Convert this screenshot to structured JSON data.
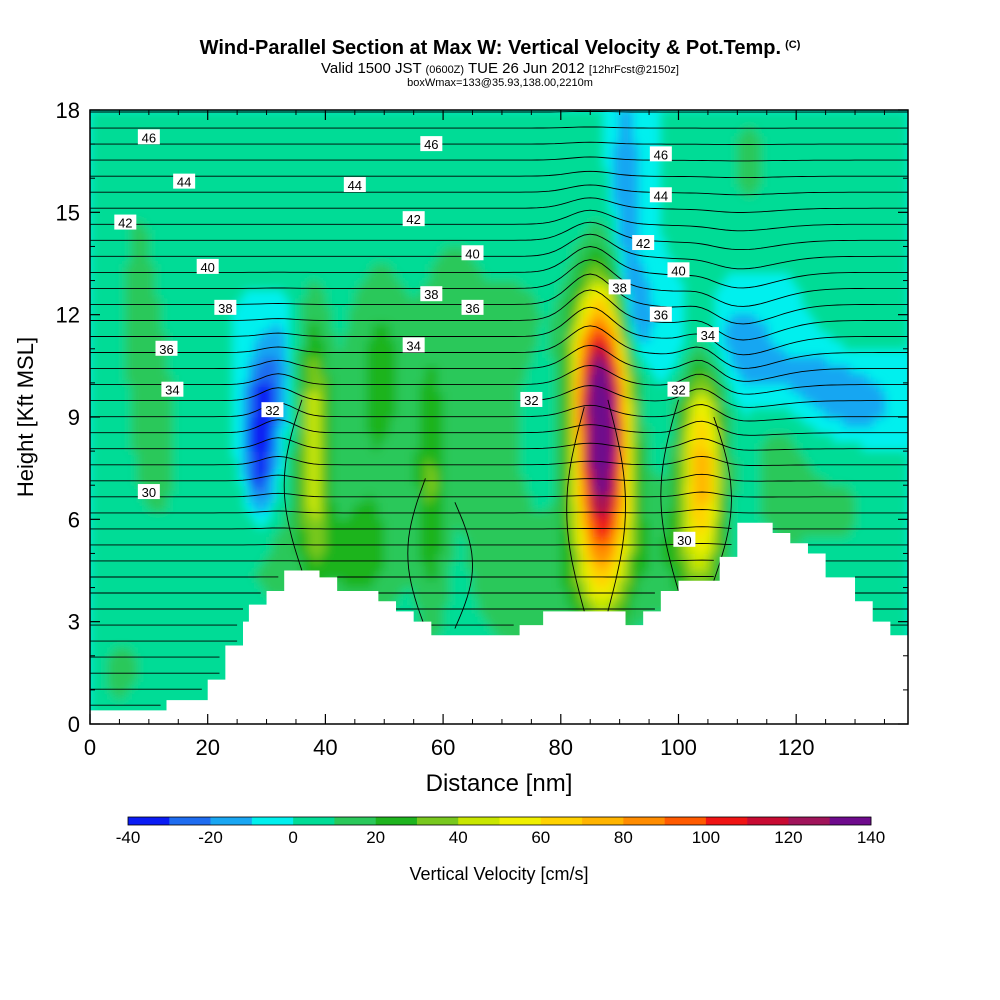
{
  "header": {
    "title": "Wind-Parallel Section at Max W: Vertical Velocity & Pot.Temp.",
    "title_tag": "(C)",
    "valid_prefix": "Valid 1500 JST",
    "valid_utc": "(0600Z)",
    "valid_date": "TUE 26 Jun 2012",
    "forecast": "[12hrFcst@2150z]",
    "box_info": "boxWmax=133@35.93,138.00,2210m"
  },
  "chart_data": {
    "type": "heatmap",
    "xlabel": "Distance [nm]",
    "ylabel": "Height [Kft MSL]",
    "xlim": [
      0,
      139
    ],
    "ylim": [
      0,
      18
    ],
    "x_ticks": [
      0,
      20,
      40,
      60,
      80,
      100,
      120
    ],
    "y_ticks": [
      0,
      3,
      6,
      9,
      12,
      15,
      18
    ],
    "grid": false,
    "colorbar": {
      "label": "Vertical Velocity [cm/s]",
      "bounds": [
        -40,
        -30,
        -20,
        -10,
        0,
        10,
        20,
        30,
        40,
        50,
        60,
        70,
        80,
        90,
        100,
        110,
        120,
        130,
        140
      ],
      "tick_labels": [
        "-40",
        "-20",
        "0",
        "20",
        "40",
        "60",
        "80",
        "100",
        "120",
        "140"
      ],
      "colors": [
        "#0a1cf4",
        "#1e6cf0",
        "#19a6f2",
        "#00f0ee",
        "#00dc96",
        "#2ac85a",
        "#1eb41e",
        "#78c81e",
        "#c8e600",
        "#f0f000",
        "#ffd200",
        "#ffb400",
        "#ff8c00",
        "#ff5a00",
        "#f01414",
        "#c80a32",
        "#a0145a",
        "#6e0a8c"
      ]
    },
    "terrain_top_kft": [
      [
        0,
        0.4
      ],
      [
        13,
        0.4
      ],
      [
        13,
        0.7
      ],
      [
        20,
        0.7
      ],
      [
        20,
        1.3
      ],
      [
        23,
        1.3
      ],
      [
        23,
        2.3
      ],
      [
        26,
        2.3
      ],
      [
        26,
        3.0
      ],
      [
        27,
        3.0
      ],
      [
        27,
        3.5
      ],
      [
        30,
        3.5
      ],
      [
        30,
        3.9
      ],
      [
        33,
        3.9
      ],
      [
        33,
        4.5
      ],
      [
        39,
        4.5
      ],
      [
        39,
        4.3
      ],
      [
        42,
        4.3
      ],
      [
        42,
        3.9
      ],
      [
        49,
        3.9
      ],
      [
        49,
        3.6
      ],
      [
        52,
        3.6
      ],
      [
        52,
        3.3
      ],
      [
        55,
        3.3
      ],
      [
        55,
        3.0
      ],
      [
        58,
        3.0
      ],
      [
        58,
        2.6
      ],
      [
        73,
        2.6
      ],
      [
        73,
        2.9
      ],
      [
        77,
        2.9
      ],
      [
        77,
        3.3
      ],
      [
        91,
        3.3
      ],
      [
        91,
        2.9
      ],
      [
        94,
        2.9
      ],
      [
        94,
        3.3
      ],
      [
        97,
        3.3
      ],
      [
        97,
        3.9
      ],
      [
        100,
        3.9
      ],
      [
        100,
        4.2
      ],
      [
        107,
        4.2
      ],
      [
        107,
        4.9
      ],
      [
        110,
        4.9
      ],
      [
        110,
        5.9
      ],
      [
        116,
        5.9
      ],
      [
        116,
        5.6
      ],
      [
        119,
        5.6
      ],
      [
        119,
        5.3
      ],
      [
        122,
        5.3
      ],
      [
        122,
        5.0
      ],
      [
        125,
        5.0
      ],
      [
        125,
        4.3
      ],
      [
        130,
        4.3
      ],
      [
        130,
        3.6
      ],
      [
        133,
        3.6
      ],
      [
        133,
        3.0
      ],
      [
        136,
        3.0
      ],
      [
        136,
        2.6
      ],
      [
        139,
        2.6
      ]
    ],
    "vertical_velocity_features_cm_s": [
      {
        "x": 87,
        "y": 8.0,
        "w_peak": 140
      },
      {
        "x": 86,
        "y": 8.5,
        "w_peak": 120
      },
      {
        "x": 104,
        "y": 7.5,
        "w_peak": 70
      },
      {
        "x": 38,
        "y": 8.3,
        "w_peak": 45
      },
      {
        "x": 29,
        "y": 8.3,
        "w_peak": -40
      },
      {
        "x": 91,
        "y": 14.5,
        "w_peak": -20
      },
      {
        "x": 115,
        "y": 10.5,
        "w_peak": -15
      }
    ],
    "isentrope_labels": [
      {
        "text": "46",
        "x": 10,
        "y": 17.2
      },
      {
        "text": "46",
        "x": 58,
        "y": 17.0
      },
      {
        "text": "46",
        "x": 97,
        "y": 16.7
      },
      {
        "text": "44",
        "x": 16,
        "y": 15.9
      },
      {
        "text": "44",
        "x": 45,
        "y": 15.8
      },
      {
        "text": "44",
        "x": 97,
        "y": 15.5
      },
      {
        "text": "42",
        "x": 6,
        "y": 14.7
      },
      {
        "text": "42",
        "x": 55,
        "y": 14.8
      },
      {
        "text": "42",
        "x": 94,
        "y": 14.1
      },
      {
        "text": "40",
        "x": 20,
        "y": 13.4
      },
      {
        "text": "40",
        "x": 65,
        "y": 13.8
      },
      {
        "text": "40",
        "x": 100,
        "y": 13.3
      },
      {
        "text": "38",
        "x": 23,
        "y": 12.2
      },
      {
        "text": "38",
        "x": 58,
        "y": 12.6
      },
      {
        "text": "38",
        "x": 90,
        "y": 12.8
      },
      {
        "text": "36",
        "x": 13,
        "y": 11.0
      },
      {
        "text": "36",
        "x": 65,
        "y": 12.2
      },
      {
        "text": "36",
        "x": 97,
        "y": 12.0
      },
      {
        "text": "34",
        "x": 14,
        "y": 9.8
      },
      {
        "text": "34",
        "x": 55,
        "y": 11.1
      },
      {
        "text": "34",
        "x": 105,
        "y": 11.4
      },
      {
        "text": "32",
        "x": 31,
        "y": 9.2
      },
      {
        "text": "32",
        "x": 75,
        "y": 9.5
      },
      {
        "text": "32",
        "x": 100,
        "y": 9.8
      },
      {
        "text": "30",
        "x": 10,
        "y": 6.8
      },
      {
        "text": "30",
        "x": 101,
        "y": 5.4
      }
    ]
  }
}
